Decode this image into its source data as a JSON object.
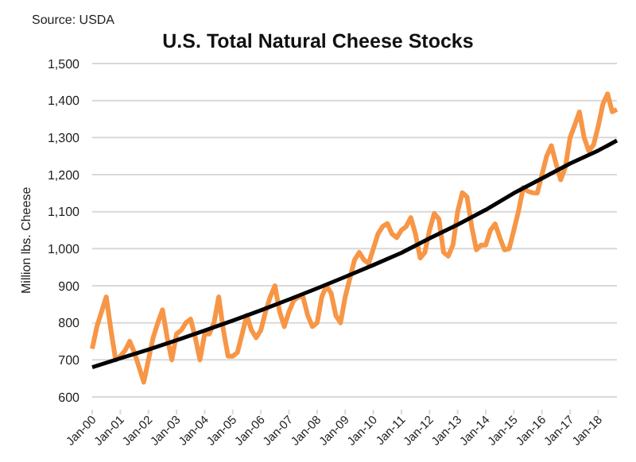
{
  "chart_data": {
    "type": "line",
    "title": "U.S. Total Natural Cheese Stocks",
    "ylabel": "Million lbs. Cheese",
    "annotations": [
      "Source: USDA"
    ],
    "categories": [
      "Jan-00",
      null,
      null,
      null,
      null,
      null,
      "Jan-01",
      null,
      null,
      null,
      null,
      null,
      "Jan-02",
      null,
      null,
      null,
      null,
      null,
      "Jan-03",
      null,
      null,
      null,
      null,
      null,
      "Jan-04",
      null,
      null,
      null,
      null,
      null,
      "Jan-05",
      null,
      null,
      null,
      null,
      null,
      "Jan-06",
      null,
      null,
      null,
      null,
      null,
      "Jan-07",
      null,
      null,
      null,
      null,
      null,
      "Jan-08",
      null,
      null,
      null,
      null,
      null,
      "Jan-09",
      null,
      null,
      null,
      null,
      null,
      "Jan-10",
      null,
      null,
      null,
      null,
      null,
      "Jan-11",
      null,
      null,
      null,
      null,
      null,
      "Jan-12",
      null,
      null,
      null,
      null,
      null,
      "Jan-13",
      null,
      null,
      null,
      null,
      null,
      "Jan-14",
      null,
      null,
      null,
      null,
      null,
      "Jan-15",
      null,
      null,
      null,
      null,
      null,
      "Jan-16",
      null,
      null,
      null,
      null,
      null,
      "Jan-17",
      null,
      null,
      null,
      null,
      null,
      "Jan-18",
      null,
      null,
      null,
      null
    ],
    "series": [
      {
        "color": "#f79646",
        "values": [
          730,
          790,
          830,
          870,
          780,
          700,
          710,
          725,
          750,
          720,
          680,
          640,
          700,
          760,
          800,
          835,
          760,
          700,
          770,
          780,
          800,
          810,
          760,
          700,
          770,
          770,
          800,
          870,
          780,
          710,
          710,
          720,
          770,
          820,
          780,
          760,
          780,
          830,
          870,
          900,
          830,
          790,
          830,
          860,
          870,
          870,
          820,
          790,
          800,
          870,
          900,
          880,
          820,
          800,
          870,
          920,
          970,
          990,
          970,
          960,
          1000,
          1040,
          1060,
          1068,
          1040,
          1030,
          1050,
          1060,
          1084,
          1040,
          975,
          990,
          1050,
          1095,
          1080,
          990,
          980,
          1010,
          1100,
          1151,
          1140,
          1060,
          997,
          1010,
          1010,
          1050,
          1067,
          1030,
          997,
          1000,
          1050,
          1102,
          1165,
          1155,
          1151,
          1150,
          1200,
          1250,
          1278,
          1230,
          1186,
          1220,
          1300,
          1334,
          1369,
          1300,
          1264,
          1280,
          1330,
          1390,
          1418,
          1370,
          1376
        ]
      },
      {
        "color": "#000000",
        "values": [
          680,
          null,
          null,
          null,
          null,
          null,
          704,
          null,
          null,
          null,
          null,
          null,
          728,
          null,
          null,
          null,
          null,
          null,
          753,
          null,
          null,
          null,
          null,
          null,
          779,
          null,
          null,
          null,
          null,
          null,
          806,
          null,
          null,
          null,
          null,
          null,
          834,
          null,
          null,
          null,
          null,
          null,
          863,
          null,
          null,
          null,
          null,
          null,
          893,
          null,
          null,
          null,
          null,
          null,
          924,
          null,
          null,
          null,
          null,
          null,
          956,
          null,
          null,
          null,
          null,
          null,
          989,
          null,
          null,
          null,
          null,
          null,
          1028,
          null,
          null,
          null,
          null,
          null,
          1065,
          null,
          null,
          null,
          null,
          null,
          1105,
          null,
          null,
          null,
          null,
          null,
          1150,
          null,
          null,
          null,
          null,
          null,
          1190,
          null,
          null,
          null,
          null,
          null,
          1230,
          null,
          null,
          null,
          null,
          null,
          1265,
          null,
          null,
          null,
          1292
        ]
      }
    ],
    "ylim": [
      600,
      1500
    ],
    "yticks": [
      {
        "value": 600,
        "label": "600"
      },
      {
        "value": 700,
        "label": "700"
      },
      {
        "value": 800,
        "label": "800"
      },
      {
        "value": 900,
        "label": "900"
      },
      {
        "value": 1000,
        "label": "1,000"
      },
      {
        "value": 1100,
        "label": "1,100"
      },
      {
        "value": 1200,
        "label": "1,200"
      },
      {
        "value": 1300,
        "label": "1,300"
      },
      {
        "value": 1400,
        "label": "1,400"
      },
      {
        "value": 1500,
        "label": "1,500"
      }
    ],
    "grid": "y",
    "marker": "none",
    "line_style": "solid"
  }
}
